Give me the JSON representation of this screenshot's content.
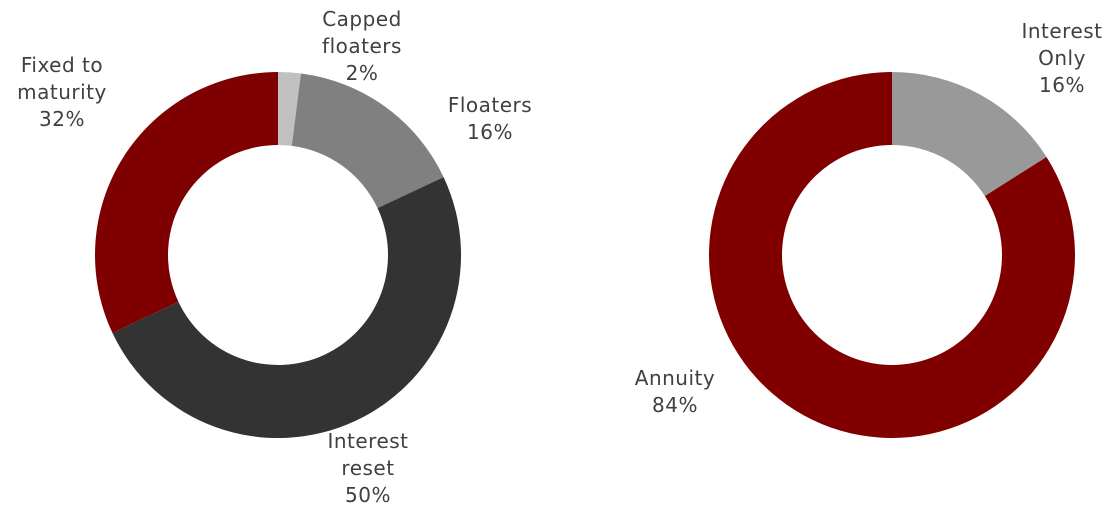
{
  "chart_data": [
    {
      "type": "donut",
      "categories": [
        "Capped floaters",
        "Floaters",
        "Interest reset",
        "Fixed to maturity"
      ],
      "values": [
        2,
        16,
        50,
        32
      ],
      "value_labels": [
        "2%",
        "16%",
        "50%",
        "32%"
      ],
      "colors": [
        "#c0c0c0",
        "#808080",
        "#333333",
        "#7f0000"
      ]
    },
    {
      "type": "donut",
      "categories": [
        "Interest Only",
        "Annuity"
      ],
      "values": [
        16,
        84
      ],
      "value_labels": [
        "16%",
        "84%"
      ],
      "colors": [
        "#999999",
        "#800000"
      ]
    }
  ]
}
